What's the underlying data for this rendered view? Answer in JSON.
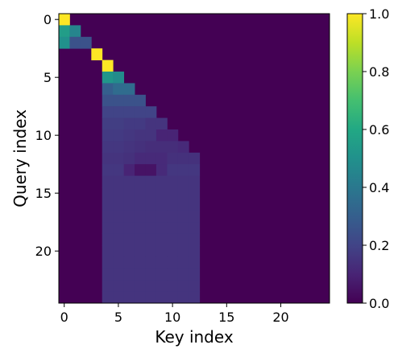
{
  "chart_data": {
    "type": "heatmap",
    "title": "",
    "xlabel": "Key index",
    "ylabel": "Query index",
    "n_rows": 25,
    "n_cols": 25,
    "x_ticks": [
      0,
      5,
      10,
      15,
      20
    ],
    "y_ticks": [
      0,
      5,
      10,
      15,
      20
    ],
    "colorbar": {
      "min": 0.0,
      "max": 1.0,
      "ticks": [
        "0.0",
        "0.2",
        "0.4",
        "0.6",
        "0.8",
        "1.0"
      ],
      "colormap": "viridis"
    },
    "rows": [
      [
        1.0
      ],
      [
        0.55,
        0.45
      ],
      [
        0.5,
        0.25,
        0.25
      ],
      [
        0.0,
        0.0,
        0.0,
        1.0
      ],
      [
        0.0,
        0.0,
        0.0,
        0.0,
        1.0
      ],
      [
        0.0,
        0.0,
        0.0,
        0.0,
        0.52,
        0.48
      ],
      [
        0.0,
        0.0,
        0.0,
        0.0,
        0.3,
        0.35,
        0.35
      ],
      [
        0.0,
        0.0,
        0.0,
        0.0,
        0.25,
        0.25,
        0.25,
        0.25
      ],
      [
        0.0,
        0.0,
        0.0,
        0.0,
        0.2,
        0.2,
        0.2,
        0.2,
        0.2
      ],
      [
        0.0,
        0.0,
        0.0,
        0.0,
        0.18,
        0.18,
        0.17,
        0.17,
        0.15,
        0.15
      ],
      [
        0.0,
        0.0,
        0.0,
        0.0,
        0.17,
        0.17,
        0.16,
        0.15,
        0.15,
        0.1,
        0.1
      ],
      [
        0.0,
        0.0,
        0.0,
        0.0,
        0.16,
        0.16,
        0.15,
        0.14,
        0.13,
        0.13,
        0.13,
        0.12
      ],
      [
        0.0,
        0.0,
        0.0,
        0.0,
        0.15,
        0.15,
        0.14,
        0.12,
        0.12,
        0.12,
        0.14,
        0.14,
        0.14
      ],
      [
        0.0,
        0.0,
        0.0,
        0.0,
        0.16,
        0.16,
        0.1,
        0.05,
        0.05,
        0.12,
        0.16,
        0.16,
        0.16
      ],
      [
        0.0,
        0.0,
        0.0,
        0.0,
        0.15,
        0.15,
        0.15,
        0.15,
        0.15,
        0.15,
        0.15,
        0.15,
        0.15
      ],
      [
        0.0,
        0.0,
        0.0,
        0.0,
        0.15,
        0.15,
        0.15,
        0.15,
        0.15,
        0.15,
        0.15,
        0.15,
        0.15
      ],
      [
        0.0,
        0.0,
        0.0,
        0.0,
        0.15,
        0.15,
        0.15,
        0.15,
        0.15,
        0.15,
        0.15,
        0.15,
        0.15
      ],
      [
        0.0,
        0.0,
        0.0,
        0.0,
        0.15,
        0.15,
        0.15,
        0.15,
        0.15,
        0.15,
        0.15,
        0.15,
        0.15
      ],
      [
        0.0,
        0.0,
        0.0,
        0.0,
        0.15,
        0.15,
        0.15,
        0.15,
        0.15,
        0.15,
        0.15,
        0.15,
        0.15
      ],
      [
        0.0,
        0.0,
        0.0,
        0.0,
        0.15,
        0.15,
        0.15,
        0.15,
        0.15,
        0.15,
        0.15,
        0.15,
        0.15
      ],
      [
        0.0,
        0.0,
        0.0,
        0.0,
        0.15,
        0.15,
        0.15,
        0.15,
        0.15,
        0.15,
        0.15,
        0.15,
        0.15
      ],
      [
        0.0,
        0.0,
        0.0,
        0.0,
        0.15,
        0.15,
        0.15,
        0.15,
        0.15,
        0.15,
        0.15,
        0.15,
        0.15
      ],
      [
        0.0,
        0.0,
        0.0,
        0.0,
        0.15,
        0.15,
        0.15,
        0.15,
        0.15,
        0.15,
        0.15,
        0.15,
        0.15
      ],
      [
        0.0,
        0.0,
        0.0,
        0.0,
        0.15,
        0.15,
        0.15,
        0.15,
        0.15,
        0.15,
        0.15,
        0.15,
        0.15
      ],
      [
        0.0,
        0.0,
        0.0,
        0.0,
        0.15,
        0.15,
        0.15,
        0.15,
        0.15,
        0.15,
        0.15,
        0.15,
        0.15
      ]
    ]
  }
}
